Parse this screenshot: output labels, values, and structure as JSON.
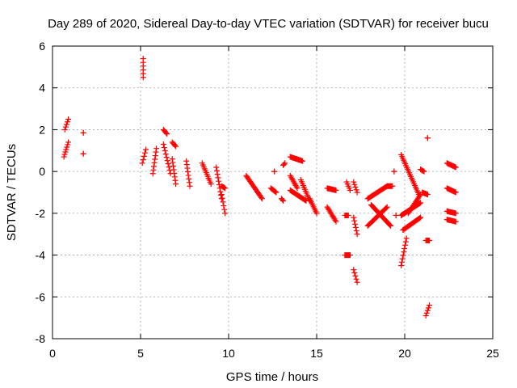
{
  "chart_data": {
    "type": "scatter",
    "title": "Day 289 of 2020, Sidereal Day-to-day VTEC variation (SDTVAR) for receiver bucu",
    "xlabel": "GPS time / hours",
    "ylabel": "SDTVAR / TECUs",
    "xlim": [
      0,
      25
    ],
    "ylim": [
      -8,
      6
    ],
    "xticks": [
      0,
      5,
      10,
      15,
      20,
      25
    ],
    "yticks": [
      -8,
      -6,
      -4,
      -2,
      0,
      2,
      4,
      6
    ],
    "grid": true,
    "marker": "+",
    "color": "#ff0000",
    "series": [
      {
        "name": "SDTVAR",
        "segments": [
          {
            "x": [
              0.7,
              0.9
            ],
            "y": [
              2.0,
              2.5
            ]
          },
          {
            "x": [
              0.65,
              0.9
            ],
            "y": [
              0.7,
              1.4
            ]
          },
          {
            "x": [
              1.75,
              1.75
            ],
            "y": [
              1.85,
              1.85
            ]
          },
          {
            "x": [
              1.75,
              1.75
            ],
            "y": [
              0.85,
              0.85
            ]
          },
          {
            "x": [
              5.15,
              5.15
            ],
            "y": [
              4.5,
              5.4
            ]
          },
          {
            "x": [
              5.1,
              5.3
            ],
            "y": [
              0.4,
              1.05
            ]
          },
          {
            "x": [
              5.7,
              5.9
            ],
            "y": [
              -0.1,
              1.1
            ]
          },
          {
            "x": [
              6.3,
              6.5
            ],
            "y": [
              2.0,
              1.8
            ]
          },
          {
            "x": [
              6.3,
              6.7
            ],
            "y": [
              1.3,
              -0.1
            ]
          },
          {
            "x": [
              6.8,
              7.0
            ],
            "y": [
              1.4,
              1.2
            ]
          },
          {
            "x": [
              6.8,
              7.0
            ],
            "y": [
              0.6,
              -0.6
            ]
          },
          {
            "x": [
              7.6,
              7.8
            ],
            "y": [
              0.5,
              -0.7
            ]
          },
          {
            "x": [
              8.5,
              9.0
            ],
            "y": [
              0.4,
              -0.6
            ]
          },
          {
            "x": [
              9.3,
              9.6
            ],
            "y": [
              0.2,
              -1.3
            ]
          },
          {
            "x": [
              9.6,
              9.8
            ],
            "y": [
              -1.1,
              -2.0
            ]
          },
          {
            "x": [
              9.6,
              9.8
            ],
            "y": [
              -0.7,
              -0.8
            ]
          },
          {
            "x": [
              11.0,
              11.9
            ],
            "y": [
              -0.2,
              -1.3
            ]
          },
          {
            "x": [
              12.4,
              12.7
            ],
            "y": [
              -0.8,
              -1.0
            ]
          },
          {
            "x": [
              12.6,
              12.6
            ],
            "y": [
              0.0,
              0.0
            ]
          },
          {
            "x": [
              13.0,
              13.1
            ],
            "y": [
              -1.3,
              -1.4
            ]
          },
          {
            "x": [
              13.1,
              13.2
            ],
            "y": [
              0.3,
              0.4
            ]
          },
          {
            "x": [
              13.5,
              14.2
            ],
            "y": [
              0.7,
              0.5
            ]
          },
          {
            "x": [
              13.5,
              13.9
            ],
            "y": [
              -0.2,
              -0.8
            ]
          },
          {
            "x": [
              13.5,
              14.4
            ],
            "y": [
              -0.9,
              -1.4
            ]
          },
          {
            "x": [
              14.1,
              14.6
            ],
            "y": [
              -0.4,
              -1.4
            ]
          },
          {
            "x": [
              14.6,
              15.0
            ],
            "y": [
              -1.3,
              -2.0
            ]
          },
          {
            "x": [
              15.6,
              16.1
            ],
            "y": [
              -0.8,
              -0.9
            ]
          },
          {
            "x": [
              15.6,
              16.1
            ],
            "y": [
              -1.7,
              -2.4
            ]
          },
          {
            "x": [
              16.7,
              16.9
            ],
            "y": [
              -0.5,
              -0.9
            ]
          },
          {
            "x": [
              16.6,
              16.9
            ],
            "y": [
              -4.0,
              -4.0
            ]
          },
          {
            "x": [
              16.6,
              16.8
            ],
            "y": [
              -2.1,
              -2.1
            ]
          },
          {
            "x": [
              17.1,
              17.3
            ],
            "y": [
              -0.5,
              -1.0
            ]
          },
          {
            "x": [
              17.1,
              17.3
            ],
            "y": [
              -2.2,
              -3.0
            ]
          },
          {
            "x": [
              17.1,
              17.3
            ],
            "y": [
              -4.7,
              -5.3
            ]
          },
          {
            "x": [
              17.9,
              19.0
            ],
            "y": [
              -1.3,
              -0.7
            ]
          },
          {
            "x": [
              17.9,
              19.0
            ],
            "y": [
              -2.6,
              -1.7
            ]
          },
          {
            "x": [
              18.1,
              19.2
            ],
            "y": [
              -1.6,
              -2.6
            ]
          },
          {
            "x": [
              19.0,
              19.3
            ],
            "y": [
              -0.7,
              -0.7
            ]
          },
          {
            "x": [
              19.5,
              19.5
            ],
            "y": [
              -2.1,
              -2.1
            ]
          },
          {
            "x": [
              19.4,
              19.4
            ],
            "y": [
              0.0,
              0.0
            ]
          },
          {
            "x": [
              19.8,
              20.8
            ],
            "y": [
              0.8,
              -1.1
            ]
          },
          {
            "x": [
              19.8,
              20.9
            ],
            "y": [
              -2.1,
              -1.5
            ]
          },
          {
            "x": [
              19.9,
              20.9
            ],
            "y": [
              -2.8,
              -2.2
            ]
          },
          {
            "x": [
              20.2,
              20.9
            ],
            "y": [
              -2.0,
              -1.1
            ]
          },
          {
            "x": [
              19.8,
              20.1
            ],
            "y": [
              -4.5,
              -3.2
            ]
          },
          {
            "x": [
              20.9,
              21.1
            ],
            "y": [
              0.1,
              0.0
            ]
          },
          {
            "x": [
              21.0,
              21.3
            ],
            "y": [
              -1.0,
              -1.1
            ]
          },
          {
            "x": [
              21.3,
              21.3
            ],
            "y": [
              1.6,
              1.6
            ]
          },
          {
            "x": [
              21.2,
              21.4
            ],
            "y": [
              -3.3,
              -3.3
            ]
          },
          {
            "x": [
              21.2,
              21.4
            ],
            "y": [
              -6.9,
              -6.4
            ]
          },
          {
            "x": [
              22.4,
              22.9
            ],
            "y": [
              0.4,
              0.2
            ]
          },
          {
            "x": [
              22.4,
              22.9
            ],
            "y": [
              -0.8,
              -1.0
            ]
          },
          {
            "x": [
              22.4,
              22.9
            ],
            "y": [
              -1.9,
              -2.0
            ]
          },
          {
            "x": [
              22.4,
              22.9
            ],
            "y": [
              -2.3,
              -2.4
            ]
          }
        ]
      }
    ]
  }
}
